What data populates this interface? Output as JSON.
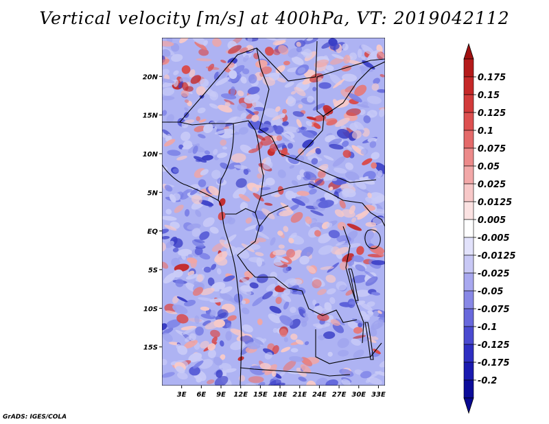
{
  "title": "Vertical velocity [m/s] at 400hPa, VT: 2019042112",
  "credit": "GrADS: IGES/COLA",
  "map": {
    "lat_labels": [
      "20N",
      "15N",
      "10N",
      "5N",
      "EQ",
      "5S",
      "10S",
      "15S"
    ],
    "lat_values": [
      20,
      15,
      10,
      5,
      0,
      -5,
      -10,
      -15
    ],
    "lon_labels": [
      "3E",
      "6E",
      "9E",
      "12E",
      "15E",
      "18E",
      "21E",
      "24E",
      "27E",
      "30E",
      "33E"
    ],
    "lon_values": [
      3,
      6,
      9,
      12,
      15,
      18,
      21,
      24,
      27,
      30,
      33
    ],
    "lat_range": [
      -20,
      25
    ],
    "lon_range": [
      0,
      34
    ]
  },
  "colorbar": {
    "labels": [
      "0.175",
      "0.15",
      "0.125",
      "0.1",
      "0.075",
      "0.05",
      "0.025",
      "0.0125",
      "0.005",
      "-0.005",
      "-0.0125",
      "-0.025",
      "-0.05",
      "-0.075",
      "-0.1",
      "-0.125",
      "-0.175",
      "-0.2"
    ],
    "colors": [
      "#b41a1a",
      "#c52828",
      "#d23a3a",
      "#dd5050",
      "#e46a6a",
      "#ec8a8a",
      "#f2a8a8",
      "#f7c8c8",
      "#fbe2e2",
      "#ffffff",
      "#e2e2fb",
      "#c8c8f5",
      "#a8a8ef",
      "#8888e6",
      "#6868dc",
      "#4a4ad0",
      "#2e2ec2",
      "#1a1ab0",
      "#0c0c9a"
    ],
    "top_color": "#a01010",
    "bottom_color": "#080890"
  },
  "colors": {
    "base_field": "#aab0f2",
    "positive": "#d24040",
    "negative": "#6060e0",
    "border": "#000000"
  }
}
